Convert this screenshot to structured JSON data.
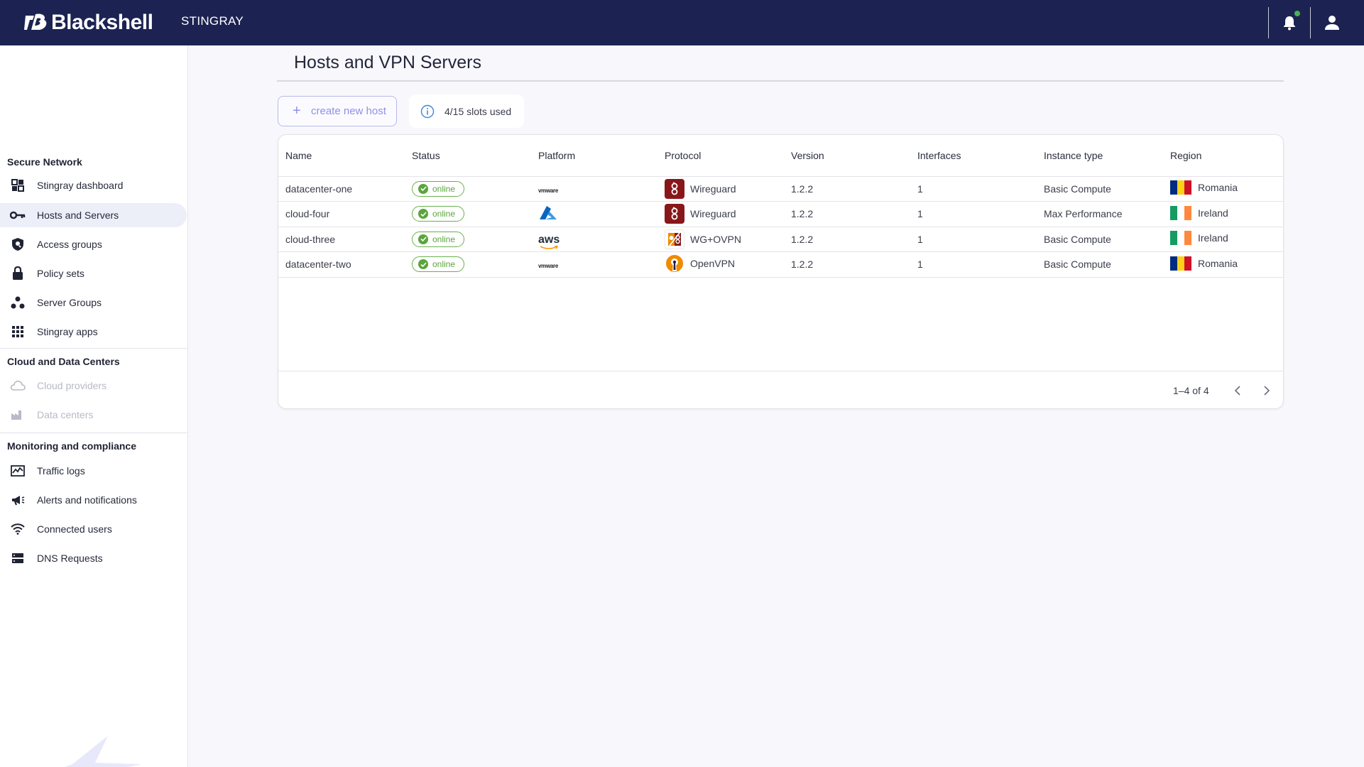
{
  "app": {
    "brand_name": "Blackshell",
    "product_name": "STINGRAY",
    "notification_dot_color": "#4caf50",
    "topbar_color": "#1c2352"
  },
  "sidebar": {
    "sections": [
      {
        "title": "Secure Network",
        "items": [
          {
            "label": "Stingray dashboard",
            "icon": "grid-icon",
            "active": false,
            "disabled": false
          },
          {
            "label": "Hosts and Servers",
            "icon": "key-icon",
            "active": true,
            "disabled": false
          },
          {
            "label": "Access groups",
            "icon": "shield-icon",
            "active": false,
            "disabled": false
          },
          {
            "label": "Policy sets",
            "icon": "lock-icon",
            "active": false,
            "disabled": false
          },
          {
            "label": "Server Groups",
            "icon": "nodes-icon",
            "active": false,
            "disabled": false
          },
          {
            "label": "Stingray apps",
            "icon": "apps-icon",
            "active": false,
            "disabled": false
          }
        ]
      },
      {
        "title": "Cloud and Data Centers",
        "items": [
          {
            "label": "Cloud providers",
            "icon": "cloud-icon",
            "active": false,
            "disabled": true
          },
          {
            "label": "Data centers",
            "icon": "factory-icon",
            "active": false,
            "disabled": true
          }
        ]
      },
      {
        "title": "Monitoring and compliance",
        "items": [
          {
            "label": "Traffic logs",
            "icon": "chart-icon",
            "active": false,
            "disabled": false
          },
          {
            "label": "Alerts and notifications",
            "icon": "megaphone-icon",
            "active": false,
            "disabled": false
          },
          {
            "label": "Connected users",
            "icon": "wifi-icon",
            "active": false,
            "disabled": false
          },
          {
            "label": "DNS Requests",
            "icon": "dns-icon",
            "active": false,
            "disabled": false
          }
        ]
      }
    ]
  },
  "main": {
    "title": "Hosts and VPN Servers",
    "create_button_label": "create new host",
    "slots_label": "4/15 slots used",
    "table": {
      "columns": [
        "Name",
        "Status",
        "Platform",
        "Protocol",
        "Version",
        "Interfaces",
        "Instance type",
        "Region"
      ],
      "rows": [
        {
          "name": "datacenter-one",
          "status": "online",
          "platform": "vmware",
          "platform_text": "vmware",
          "protocol": "Wireguard",
          "protocol_icon": "wireguard-icon",
          "version": "1.2.2",
          "interfaces": "1",
          "instance_type": "Basic Compute",
          "region": "Romania",
          "flag": [
            "#002b7f",
            "#fcd116",
            "#ce1126"
          ]
        },
        {
          "name": "cloud-four",
          "status": "online",
          "platform": "azure",
          "platform_text": "",
          "protocol": "Wireguard",
          "protocol_icon": "wireguard-icon",
          "version": "1.2.2",
          "interfaces": "1",
          "instance_type": "Max Performance",
          "region": "Ireland",
          "flag": [
            "#169b62",
            "#ffffff",
            "#ff883e"
          ]
        },
        {
          "name": "cloud-three",
          "status": "online",
          "platform": "aws",
          "platform_text": "aws",
          "protocol": "WG+OVPN",
          "protocol_icon": "wg-ovpn-icon",
          "version": "1.2.2",
          "interfaces": "1",
          "instance_type": "Basic Compute",
          "region": "Ireland",
          "flag": [
            "#169b62",
            "#ffffff",
            "#ff883e"
          ]
        },
        {
          "name": "datacenter-two",
          "status": "online",
          "platform": "vmware",
          "platform_text": "vmware",
          "protocol": "OpenVPN",
          "protocol_icon": "openvpn-icon",
          "version": "1.2.2",
          "interfaces": "1",
          "instance_type": "Basic Compute",
          "region": "Romania",
          "flag": [
            "#002b7f",
            "#fcd116",
            "#ce1126"
          ]
        }
      ]
    },
    "pagination": {
      "range_label": "1–4 of 4"
    }
  }
}
